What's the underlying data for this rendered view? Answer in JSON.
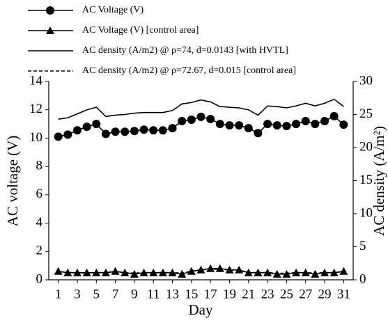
{
  "chart_data": {
    "type": "line",
    "x": [
      1,
      2,
      3,
      4,
      5,
      6,
      7,
      8,
      9,
      10,
      11,
      12,
      13,
      14,
      15,
      16,
      17,
      18,
      19,
      20,
      21,
      22,
      23,
      24,
      25,
      26,
      27,
      28,
      29,
      30,
      31
    ],
    "xlim": [
      0,
      32
    ],
    "xticks": [
      1,
      3,
      5,
      7,
      9,
      11,
      13,
      15,
      17,
      19,
      21,
      23,
      25,
      27,
      29,
      31
    ],
    "ylim": [
      0,
      14
    ],
    "yticks": [
      0,
      2,
      4,
      6,
      8,
      10,
      12,
      14
    ],
    "y2lim": [
      0,
      30
    ],
    "y2ticks": [
      0,
      5,
      10,
      15,
      20,
      25,
      30
    ],
    "x_label": "Day",
    "y_label": "AC voltage (V)",
    "y2_label": "AC density (A/m²)",
    "legend": "top-left",
    "series": [
      {
        "name": "AC Voltage (V)",
        "color": "#000000",
        "marker": "circle",
        "dashed": false,
        "values": [
          10.1,
          10.25,
          10.55,
          10.8,
          11.0,
          10.3,
          10.45,
          10.45,
          10.5,
          10.6,
          10.55,
          10.55,
          10.7,
          11.2,
          11.3,
          11.5,
          11.35,
          11.0,
          10.9,
          10.9,
          10.7,
          10.35,
          11.0,
          10.9,
          10.85,
          11.0,
          11.2,
          11.0,
          11.2,
          11.55,
          10.95
        ]
      },
      {
        "name": "AC Voltage (V) [control area]",
        "color": "#000000",
        "marker": "triangle",
        "dashed": false,
        "values": [
          0.6,
          0.5,
          0.5,
          0.5,
          0.5,
          0.5,
          0.6,
          0.5,
          0.4,
          0.5,
          0.5,
          0.5,
          0.5,
          0.4,
          0.6,
          0.7,
          0.8,
          0.8,
          0.7,
          0.7,
          0.5,
          0.5,
          0.5,
          0.4,
          0.4,
          0.5,
          0.5,
          0.4,
          0.5,
          0.5,
          0.6
        ]
      },
      {
        "name": "AC density (A/m2) @ ρ=74, d=0.0143 [with HVTL]",
        "color": "#000000",
        "marker": "none",
        "dashed": false,
        "axis": "y2",
        "values": [
          24.3,
          24.5,
          25.1,
          25.7,
          26.1,
          24.7,
          24.9,
          25.0,
          25.2,
          25.3,
          25.3,
          25.3,
          25.6,
          26.6,
          26.8,
          27.2,
          26.9,
          26.2,
          26.1,
          26.0,
          25.7,
          24.9,
          26.3,
          26.2,
          26.0,
          26.3,
          26.7,
          26.3,
          26.7,
          27.3,
          26.2
        ]
      },
      {
        "name": "AC density (A/m2) @ ρ=72.67, d=0.015 [control area]",
        "color": "#000000",
        "marker": "none",
        "dashed": true,
        "axis": "y2",
        "values": [
          1.2,
          1.1,
          1.1,
          1.0,
          1.1,
          1.1,
          1.2,
          1.1,
          1.0,
          1.1,
          1.1,
          1.1,
          1.1,
          1.0,
          1.3,
          1.5,
          1.6,
          1.6,
          1.5,
          1.4,
          1.1,
          1.1,
          1.1,
          1.0,
          1.0,
          1.1,
          1.1,
          1.0,
          1.1,
          1.1,
          1.2
        ]
      }
    ]
  }
}
